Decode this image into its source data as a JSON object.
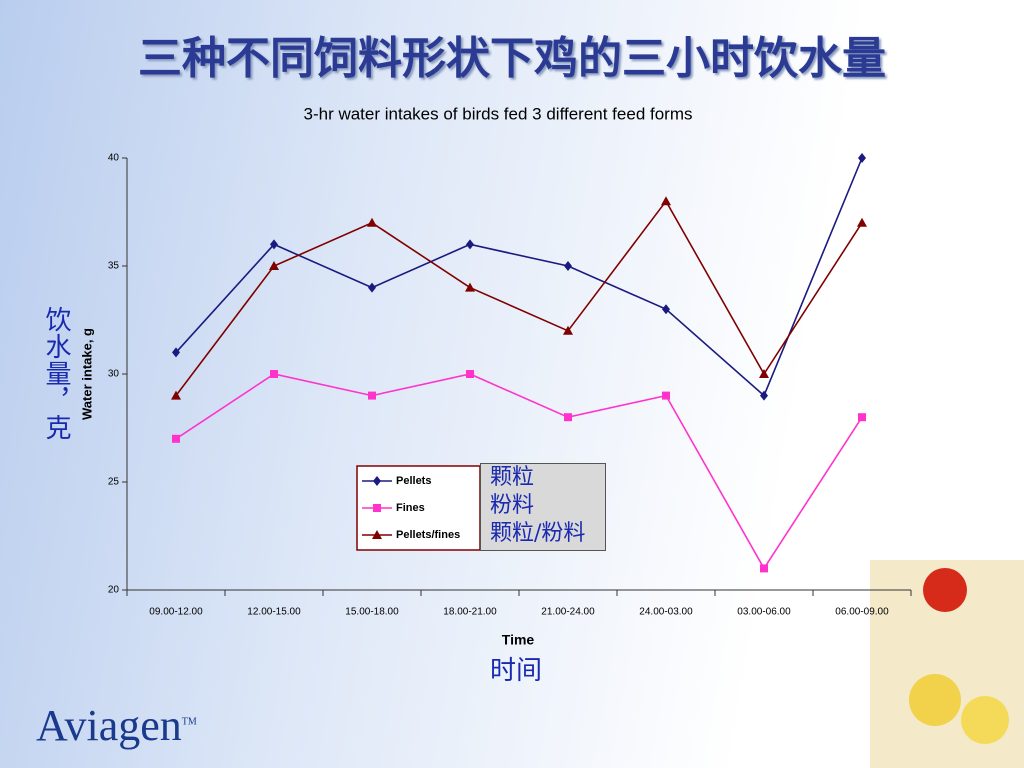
{
  "slide_title": "三种不同饲料形状下鸡的三小时饮水量",
  "chart_data": {
    "type": "line",
    "title": "3-hr water intakes of birds fed 3 different feed forms",
    "x_label": "Time",
    "y_label": "Water intake, g",
    "categories": [
      "09.00-12.00",
      "12.00-15.00",
      "15.00-18.00",
      "18.00-21.00",
      "21.00-24.00",
      "24.00-03.00",
      "03.00-06.00",
      "06.00-09.00"
    ],
    "series": [
      {
        "name": "Pellets",
        "color": "#1a1a80",
        "marker": "diamond",
        "values": [
          31,
          36,
          34,
          36,
          35,
          33,
          29,
          40
        ]
      },
      {
        "name": "Fines",
        "color": "#ff33cc",
        "marker": "square",
        "values": [
          27,
          30,
          29,
          30,
          28,
          29,
          21,
          28
        ]
      },
      {
        "name": "Pellets/fines",
        "color": "#800000",
        "marker": "triangle",
        "values": [
          29,
          35,
          37,
          34,
          32,
          38,
          30,
          37
        ]
      }
    ],
    "ylim": [
      20,
      40
    ],
    "yticks": [
      20,
      25,
      30,
      35,
      40
    ]
  },
  "annotations": {
    "y_label_cn": "饮水量，克",
    "x_label_cn": "时间",
    "legend_cn": [
      "颗粒",
      "粉料",
      "颗粒/粉料"
    ]
  },
  "logo": {
    "name": "Aviagen",
    "mark": "TM"
  }
}
